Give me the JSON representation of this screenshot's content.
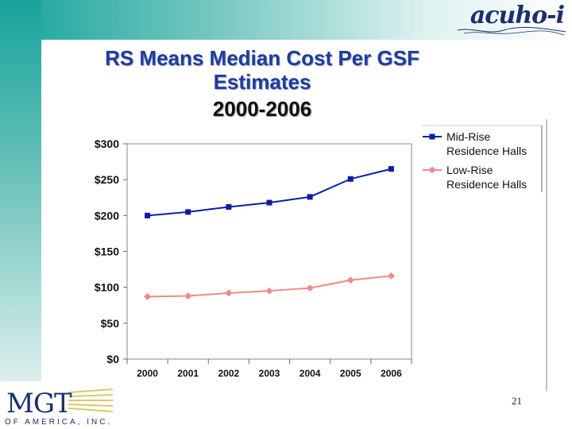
{
  "slide": {
    "title": "RS Means Median Cost Per GSF Estimates",
    "subtitle": "2000-2006",
    "page_number": "21"
  },
  "branding": {
    "top_logo": "acuho-i",
    "bottom_logo": "MGT",
    "bottom_logo_sub": "OF AMERICA, INC.",
    "accent_teal": "#17a49b",
    "brand_navy": "#1c2f6e"
  },
  "chart_data": {
    "type": "line",
    "title": "",
    "xlabel": "",
    "ylabel": "",
    "categories": [
      "2000",
      "2001",
      "2002",
      "2003",
      "2004",
      "2005",
      "2006"
    ],
    "ylim": [
      0,
      300
    ],
    "yticks": [
      0,
      50,
      100,
      150,
      200,
      250,
      300
    ],
    "ytick_labels": [
      "$0",
      "$50",
      "$100",
      "$150",
      "$200",
      "$250",
      "$300"
    ],
    "legend_position": "right",
    "grid": false,
    "series": [
      {
        "name": "Mid-Rise Residence Halls",
        "name_lines": [
          "Mid-Rise",
          "Residence Halls"
        ],
        "color": "#0b1ca8",
        "marker": "square",
        "values": [
          200,
          205,
          212,
          218,
          226,
          251,
          265
        ]
      },
      {
        "name": "Low-Rise Residence Halls",
        "name_lines": [
          "Low-Rise",
          "Residence Halls"
        ],
        "color": "#f08a8a",
        "marker": "diamond",
        "values": [
          87,
          88,
          92,
          95,
          99,
          110,
          116
        ]
      }
    ]
  }
}
